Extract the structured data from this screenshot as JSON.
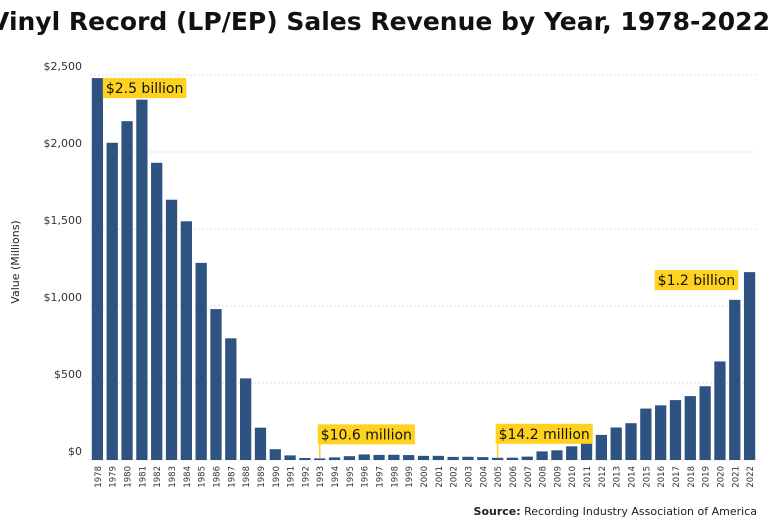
{
  "chart_data": {
    "type": "bar",
    "title": "Vinyl Record (LP/EP) Sales Revenue by Year, 1978-2022",
    "y_label": "Value (Millions)",
    "source_label": "Source:",
    "source": "Recording Industry Association of America",
    "categories": [
      "1978",
      "1979",
      "1980",
      "1981",
      "1982",
      "1983",
      "1984",
      "1985",
      "1986",
      "1987",
      "1988",
      "1989",
      "1990",
      "1991",
      "1992",
      "1993",
      "1994",
      "1995",
      "1996",
      "1997",
      "1998",
      "1999",
      "2000",
      "2001",
      "2002",
      "2003",
      "2004",
      "2005",
      "2006",
      "2007",
      "2008",
      "2009",
      "2010",
      "2011",
      "2012",
      "2013",
      "2014",
      "2015",
      "2016",
      "2017",
      "2018",
      "2019",
      "2020",
      "2021",
      "2022"
    ],
    "values": [
      2480,
      2060,
      2200,
      2340,
      1930,
      1690,
      1550,
      1280,
      980,
      790,
      530,
      210,
      70,
      30,
      13,
      10.6,
      17,
      25,
      36,
      33,
      34,
      32,
      27,
      27,
      20,
      21,
      19,
      14.2,
      15,
      22,
      56,
      63,
      89,
      120,
      163,
      211,
      239,
      334,
      355,
      389,
      415,
      479,
      640,
      1040,
      1220
    ],
    "color": "#2e5382",
    "ylim": [
      0,
      2500
    ],
    "yticks": [
      {
        "value": 0,
        "label": "$0"
      },
      {
        "value": 500,
        "label": "$500"
      },
      {
        "value": 1000,
        "label": "$1,000"
      },
      {
        "value": 1500,
        "label": "$1,500"
      },
      {
        "value": 2000,
        "label": "$2,000"
      },
      {
        "value": 2500,
        "label": "$2,500"
      }
    ],
    "grid": true,
    "annotation_color": "#ffd21f",
    "annotations": [
      {
        "text": "$2.5 billion",
        "x": "1978"
      },
      {
        "text": "$10.6 million",
        "x": "1993"
      },
      {
        "text": "$14.2 million",
        "x": "2005"
      },
      {
        "text": "$1.2 billion",
        "x": "2022"
      }
    ]
  }
}
